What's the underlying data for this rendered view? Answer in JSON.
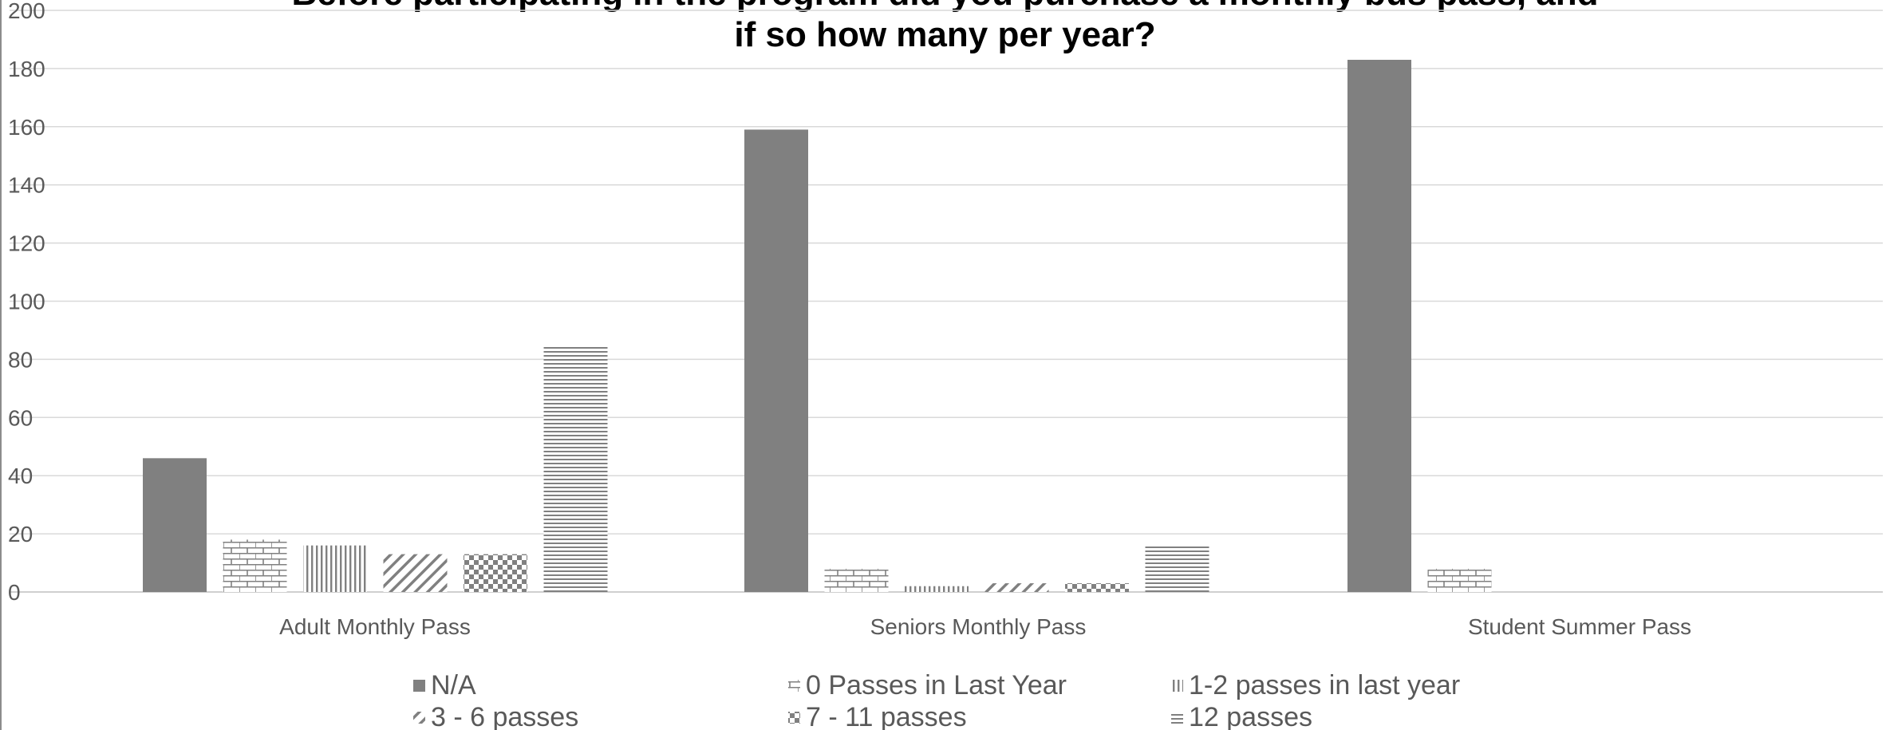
{
  "chart_data": {
    "type": "bar",
    "title": "Before participating in the program did you purchase a monthly bus pass, and\nif so how many per year?",
    "categories": [
      "Adult Monthly Pass",
      "Seniors Monthly Pass",
      "Student Summer Pass"
    ],
    "series": [
      {
        "name": "N/A",
        "values": [
          46,
          159,
          183
        ],
        "color": "#808080",
        "pattern": "solid"
      },
      {
        "name": "0 Passes in Last Year",
        "values": [
          18,
          8,
          8
        ],
        "color": "#808080",
        "pattern": "brick"
      },
      {
        "name": "1-2 passes in last year",
        "values": [
          16,
          2,
          0
        ],
        "color": "#808080",
        "pattern": "vertical"
      },
      {
        "name": "3 - 6 passes",
        "values": [
          13,
          3,
          0
        ],
        "color": "#808080",
        "pattern": "diagonal"
      },
      {
        "name": "7 - 11 passes",
        "values": [
          13,
          3,
          0
        ],
        "color": "#808080",
        "pattern": "checker"
      },
      {
        "name": "12 passes",
        "values": [
          85,
          16,
          0
        ],
        "color": "#808080",
        "pattern": "horizontal"
      }
    ],
    "ylim": [
      0,
      200
    ],
    "yticks": [
      0,
      20,
      40,
      60,
      80,
      100,
      120,
      140,
      160,
      180,
      200
    ],
    "xlabel": "",
    "ylabel": "",
    "grid": true,
    "legend_position": "bottom"
  }
}
